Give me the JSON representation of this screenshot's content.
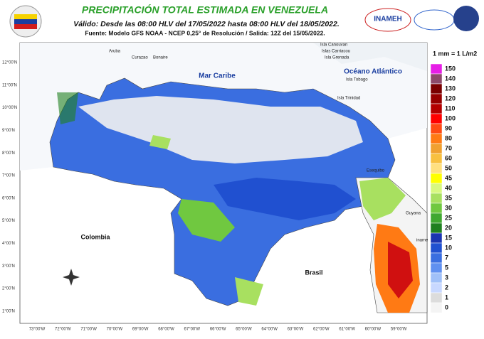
{
  "header": {
    "title": "PRECIPITACIÓN TOTAL ESTIMADA EN VENEZUELA",
    "subtitle": "Válido: Desde las 08:00 HLV del 17/05/2022 hasta 08:00 HLV del 18/05/2022.",
    "source": "Fuente: Modelo GFS NOAA - NCEP 0,25° de Resolución / Salida: 12Z del 15/05/2022.",
    "logo": "INAMEH"
  },
  "map": {
    "lat_labels": [
      "12°00'N",
      "11°00'N",
      "10°00'N",
      "9°00'N",
      "8°00'N",
      "7°00'N",
      "6°00'N",
      "5°00'N",
      "4°00'N",
      "3°00'N",
      "2°00'N",
      "1°00'N"
    ],
    "lon_labels": [
      "73°00'W",
      "72°00'W",
      "71°00'W",
      "70°00'W",
      "69°00'W",
      "68°00'W",
      "67°00'W",
      "66°00'W",
      "65°00'W",
      "64°00'W",
      "63°00'W",
      "62°00'W",
      "61°00'W",
      "60°00'W",
      "59°00'W"
    ],
    "places": {
      "mar_caribe": "Mar Caribe",
      "oceano": "Océano Atlántico",
      "colombia": "Colombia",
      "brasil": "Brasil",
      "guyana": "Guyana",
      "suriname": "iname",
      "esequibo": "Esequibo",
      "aruba": "Aruba",
      "curazao": "Curazao",
      "bonaire": "Bonaire",
      "canouvan": "Isla Canouvan",
      "carriacou": "Islas Carriacou",
      "grenada": "Isla Grenada",
      "tobago": "Isla Tobago",
      "trinidad": "Isla Trinidad"
    }
  },
  "legend": {
    "title": "1 mm = 1 L/m2",
    "items": [
      {
        "value": 150,
        "color": "#e61ee6"
      },
      {
        "value": 140,
        "color": "#8c4a6a"
      },
      {
        "value": 130,
        "color": "#7a0000"
      },
      {
        "value": 120,
        "color": "#960000"
      },
      {
        "value": 110,
        "color": "#b40000"
      },
      {
        "value": 100,
        "color": "#ff0000"
      },
      {
        "value": 90,
        "color": "#ff4a14"
      },
      {
        "value": 80,
        "color": "#ff7a14"
      },
      {
        "value": 70,
        "color": "#f0a030"
      },
      {
        "value": 60,
        "color": "#f8c040"
      },
      {
        "value": 50,
        "color": "#ffe080"
      },
      {
        "value": 45,
        "color": "#ffff00"
      },
      {
        "value": 40,
        "color": "#d8f880"
      },
      {
        "value": 35,
        "color": "#a8e060"
      },
      {
        "value": 30,
        "color": "#70c840"
      },
      {
        "value": 25,
        "color": "#40a830"
      },
      {
        "value": 20,
        "color": "#208020"
      },
      {
        "value": 15,
        "color": "#1a34b0"
      },
      {
        "value": 10,
        "color": "#2050d0"
      },
      {
        "value": 7,
        "color": "#3a6ee0"
      },
      {
        "value": 5,
        "color": "#6090f0"
      },
      {
        "value": 3,
        "color": "#a0c0f8"
      },
      {
        "value": 2,
        "color": "#c8d8ff"
      },
      {
        "value": 1,
        "color": "#dcdcdc"
      },
      {
        "value": 0,
        "color": "#f4f4f4"
      }
    ]
  }
}
